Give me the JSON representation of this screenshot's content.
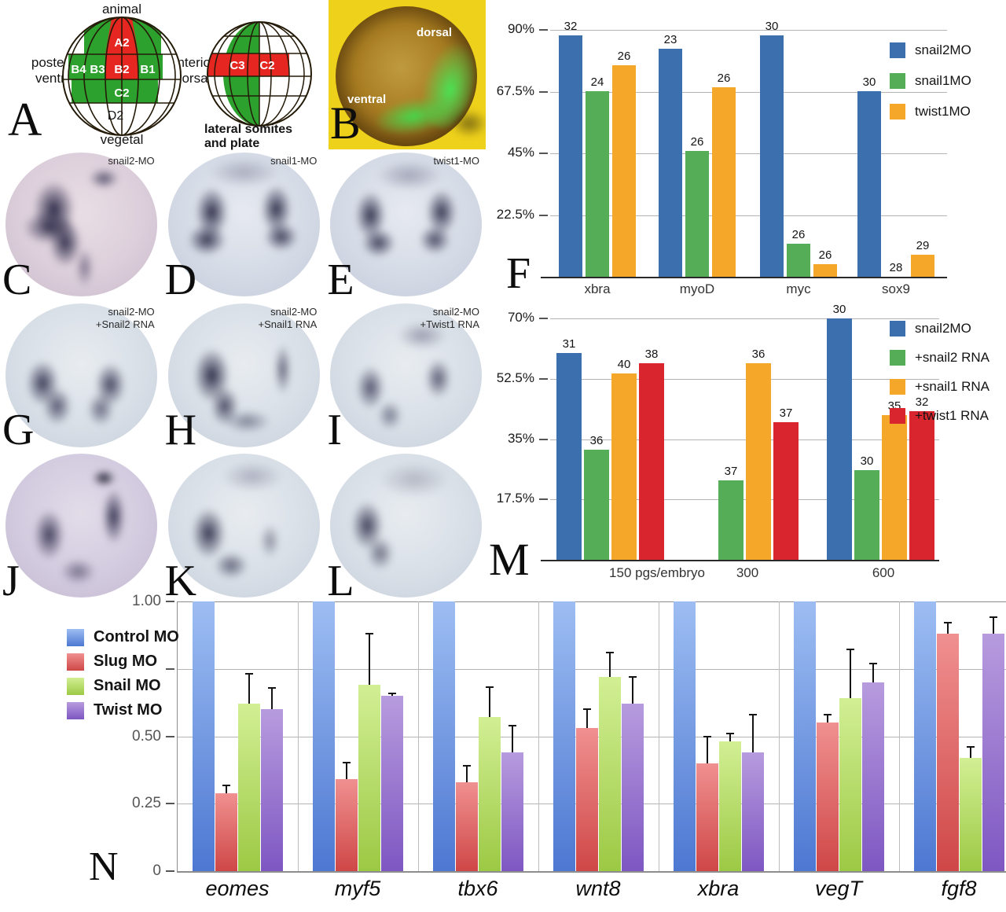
{
  "panel_a": {
    "letter": "A",
    "fate_map": {
      "axis_labels": {
        "top": "animal",
        "bottom": "vegetal",
        "left_line1": "posterior",
        "left_line2": "ventral",
        "right_line1": "anterior",
        "right_line2": "dorsal"
      },
      "cells": {
        "a2": "A2",
        "b4": "B4",
        "b3": "B3",
        "b2": "B2",
        "b1": "B1",
        "c2": "C2",
        "d2": "D2"
      },
      "green": "#2da12d",
      "red": "#e62621"
    },
    "somite_map": {
      "cells": {
        "c3": "C3",
        "c2": "C2"
      },
      "caption_line1": "lateral somites",
      "caption_line2": "and plate",
      "green": "#2da12d",
      "red": "#e62621"
    }
  },
  "panel_b": {
    "letter": "B",
    "labels": {
      "dorsal": "dorsal",
      "ventral": "ventral"
    }
  },
  "embryos": [
    {
      "letter": "C",
      "label": "snail2-MO",
      "pattern": "c",
      "base": "c"
    },
    {
      "letter": "D",
      "label": "snail1-MO",
      "pattern": "d",
      "base": "d"
    },
    {
      "letter": "E",
      "label": "twist1-MO",
      "pattern": "e",
      "base": "d"
    },
    {
      "letter": "G",
      "label": "snail2-MO\n+Snail2 RNA",
      "pattern": "g",
      "base": "g"
    },
    {
      "letter": "H",
      "label": "snail2-MO\n+Snail1 RNA",
      "pattern": "h",
      "base": "g"
    },
    {
      "letter": "I",
      "label": "snail2-MO\n+Twist1 RNA",
      "pattern": "i",
      "base": "g"
    },
    {
      "letter": "J",
      "label": "",
      "pattern": "j",
      "base": "j"
    },
    {
      "letter": "K",
      "label": "",
      "pattern": "k",
      "base": "g"
    },
    {
      "letter": "L",
      "label": "",
      "pattern": "l",
      "base": "g"
    }
  ],
  "chart_data": [
    {
      "id": "F",
      "panel_letter": "F",
      "type": "bar",
      "title": "",
      "xlabel": "",
      "ylabel": "",
      "ymax": 90,
      "grid": true,
      "legend_position": "right",
      "ytick_labels": [
        "90%",
        "67.5%",
        "45%",
        "22.5%"
      ],
      "ytick_values": [
        90,
        67.5,
        45,
        22.5
      ],
      "categories": [
        "xbra",
        "myoD",
        "myc",
        "sox9"
      ],
      "series": [
        {
          "name": "snail2MO",
          "color": "#3b6fad",
          "values": [
            88,
            83,
            88,
            67.5
          ],
          "counts": [
            32,
            23,
            30,
            30
          ]
        },
        {
          "name": "snail1MO",
          "color": "#55ad57",
          "values": [
            67.5,
            46,
            12,
            0
          ],
          "counts": [
            24,
            26,
            26,
            28
          ]
        },
        {
          "name": "twist1MO",
          "color": "#f5a72a",
          "values": [
            77,
            69,
            4.5,
            8
          ],
          "counts": [
            26,
            26,
            26,
            29
          ]
        }
      ]
    },
    {
      "id": "M",
      "panel_letter": "M",
      "type": "bar",
      "title": "",
      "xlabel": "",
      "ylabel": "",
      "ymax": 70,
      "grid": true,
      "legend_position": "right",
      "ytick_labels": [
        "70%",
        "52.5%",
        "35%",
        "17.5%"
      ],
      "ytick_values": [
        70,
        52.5,
        35,
        17.5
      ],
      "categories": [
        "150 pgs/embryo",
        "300",
        "600"
      ],
      "series": [
        {
          "name": "snail2MO",
          "color": "#3b6fad",
          "values": [
            60,
            null,
            70
          ],
          "counts": [
            31,
            null,
            30
          ]
        },
        {
          "name": "+snail2 RNA",
          "color": "#55ad57",
          "values": [
            32,
            23,
            26
          ],
          "counts": [
            36,
            37,
            30
          ]
        },
        {
          "name": "+snail1 RNA",
          "color": "#f5a72a",
          "values": [
            54,
            57,
            42
          ],
          "counts": [
            40,
            36,
            35
          ]
        },
        {
          "name": "+twist1 RNA",
          "color": "#d8252e",
          "values": [
            57,
            40,
            43
          ],
          "counts": [
            38,
            37,
            32
          ]
        }
      ]
    },
    {
      "id": "N",
      "panel_letter": "N",
      "type": "bar",
      "title": "",
      "xlabel": "",
      "ylabel": "",
      "ymax": 1.0,
      "grid": true,
      "legend_position": "left",
      "ytick_labels": [
        "1.00",
        "0.50",
        "0.25",
        "0"
      ],
      "ytick_values": [
        1.0,
        0.5,
        0.25,
        0
      ],
      "unlabeled_tick_values": [
        0.75
      ],
      "categories": [
        "eomes",
        "myf5",
        "tbx6",
        "wnt8",
        "xbra",
        "vegT",
        "fgf8"
      ],
      "series": [
        {
          "name": "Control MO",
          "color_start": "#9dbdf2",
          "color_end": "#4d78d2",
          "values": [
            1,
            1,
            1,
            1,
            1,
            1,
            1
          ]
        },
        {
          "name": "Slug MO",
          "color_start": "#f09090",
          "color_end": "#cf4747",
          "values": [
            0.29,
            0.34,
            0.33,
            0.53,
            0.4,
            0.55,
            0.88
          ],
          "errors": [
            0.03,
            0.06,
            0.06,
            0.07,
            0.1,
            0.03,
            0.04
          ]
        },
        {
          "name": "Snail MO",
          "color_start": "#d2ef94",
          "color_end": "#9cc944",
          "values": [
            0.62,
            0.69,
            0.57,
            0.72,
            0.48,
            0.64,
            0.42
          ],
          "errors": [
            0.11,
            0.19,
            0.11,
            0.09,
            0.03,
            0.18,
            0.04
          ]
        },
        {
          "name": "Twist MO",
          "color_start": "#b79bde",
          "color_end": "#7e57c2",
          "values": [
            0.6,
            0.65,
            0.44,
            0.62,
            0.44,
            0.7,
            0.88
          ],
          "errors": [
            0.08,
            0.01,
            0.1,
            0.1,
            0.14,
            0.07,
            0.06
          ]
        }
      ]
    }
  ]
}
